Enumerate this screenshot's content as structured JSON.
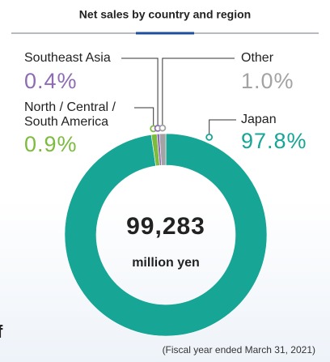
{
  "title": "Net sales by country and region",
  "chart_data": {
    "type": "donut",
    "categories": [
      "Japan",
      "North / Central / South America",
      "Southeast Asia",
      "Other"
    ],
    "values": [
      97.8,
      0.9,
      0.4,
      1.0
    ],
    "value_labels": [
      "97.8%",
      "0.9%",
      "0.4%",
      "1.0%"
    ],
    "colors": [
      "#17a596",
      "#7dbb3e",
      "#8e6bb5",
      "#a3a3a3"
    ],
    "center_value": "99,283",
    "center_unit": "million yen"
  },
  "footnote": "(Fiscal year ended March 31, 2021)",
  "fragment": "f"
}
